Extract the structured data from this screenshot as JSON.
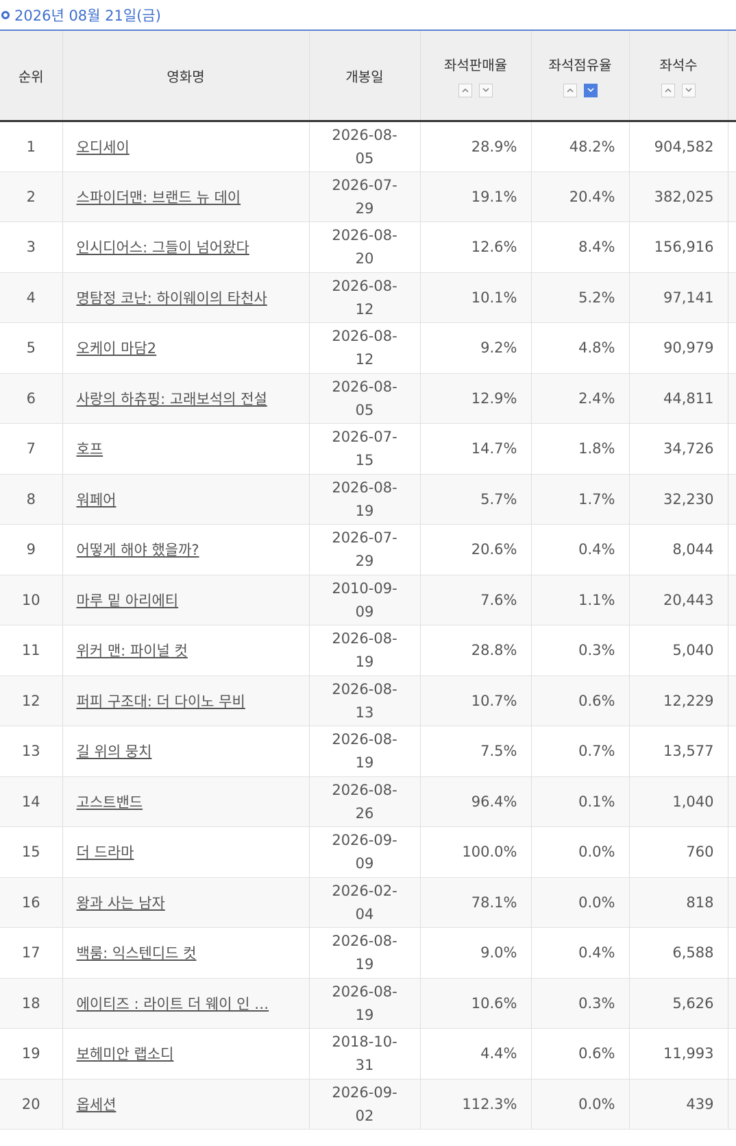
{
  "title": "2026년 08월 21일(금)",
  "table": {
    "headers": [
      "순위",
      "영화명",
      "개봉일",
      "좌석판매율",
      "좌석점유율",
      "좌석수"
    ],
    "rows": [
      [
        "1",
        "오디세이",
        "2026-08-05",
        "28.9%",
        "48.2%",
        "904,582"
      ],
      [
        "2",
        "스파이더맨: 브랜드 뉴 데이",
        "2026-07-29",
        "19.1%",
        "20.4%",
        "382,025"
      ],
      [
        "3",
        "인시디어스: 그들이 넘어왔다",
        "2026-08-20",
        "12.6%",
        "8.4%",
        "156,916"
      ],
      [
        "4",
        "명탐정 코난: 하이웨이의 타천사",
        "2026-08-12",
        "10.1%",
        "5.2%",
        "97,141"
      ],
      [
        "5",
        "오케이 마담2",
        "2026-08-12",
        "9.2%",
        "4.8%",
        "90,979"
      ],
      [
        "6",
        "사랑의 하츄핑: 고래보석의 전설",
        "2026-08-05",
        "12.9%",
        "2.4%",
        "44,811"
      ],
      [
        "7",
        "호프",
        "2026-07-15",
        "14.7%",
        "1.8%",
        "34,726"
      ],
      [
        "8",
        "워페어",
        "2026-08-19",
        "5.7%",
        "1.7%",
        "32,230"
      ],
      [
        "9",
        "어떻게 해야 했을까?",
        "2026-07-29",
        "20.6%",
        "0.4%",
        "8,044"
      ],
      [
        "10",
        "마루 밑 아리에티",
        "2010-09-09",
        "7.6%",
        "1.1%",
        "20,443"
      ],
      [
        "11",
        "위커 맨: 파이널 컷",
        "2026-08-19",
        "28.8%",
        "0.3%",
        "5,040"
      ],
      [
        "12",
        "퍼피 구조대: 더 다이노 무비",
        "2026-08-13",
        "10.7%",
        "0.6%",
        "12,229"
      ],
      [
        "13",
        "길 위의 뭉치",
        "2026-08-19",
        "7.5%",
        "0.7%",
        "13,577"
      ],
      [
        "14",
        "고스트밴드",
        "2026-08-26",
        "96.4%",
        "0.1%",
        "1,040"
      ],
      [
        "15",
        "더 드라마",
        "2026-09-09",
        "100.0%",
        "0.0%",
        "760"
      ],
      [
        "16",
        "왕과 사는 남자",
        "2026-02-04",
        "78.1%",
        "0.0%",
        "818"
      ],
      [
        "17",
        "백룸: 익스텐디드 컷",
        "2026-08-19",
        "9.0%",
        "0.4%",
        "6,588"
      ],
      [
        "18",
        "에이티즈 : 라이트 더 웨이 인 …",
        "2026-08-19",
        "10.6%",
        "0.3%",
        "5,626"
      ],
      [
        "19",
        "보헤미안 랩소디",
        "2018-10-31",
        "4.4%",
        "0.6%",
        "11,993"
      ],
      [
        "20",
        "옵세션",
        "2026-09-02",
        "112.3%",
        "0.0%",
        "439"
      ]
    ]
  }
}
